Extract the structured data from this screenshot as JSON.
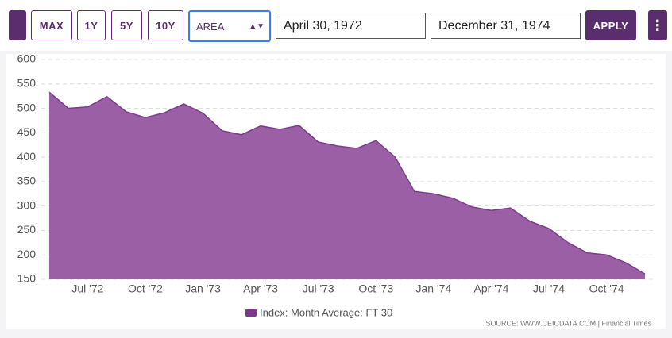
{
  "toolbar": {
    "buttons": [
      "MAX",
      "1Y",
      "5Y",
      "10Y"
    ],
    "chart_type": "AREA",
    "start_date": "April 30, 1972",
    "end_date": "December 31, 1974",
    "apply": "APPLY"
  },
  "chart_data": {
    "type": "area",
    "categories": [
      null,
      null,
      "Jul '72",
      null,
      null,
      "Oct '72",
      null,
      null,
      "Jan '73",
      null,
      null,
      "Apr '73",
      null,
      null,
      "Jul '73",
      null,
      null,
      "Oct '73",
      null,
      null,
      "Jan '74",
      null,
      null,
      "Apr '74",
      null,
      null,
      "Jul '74",
      null,
      null,
      "Oct '74",
      null,
      null
    ],
    "series": [
      {
        "name": "Index: Month Average: FT 30",
        "color": "#9b5fa6",
        "values": [
          533,
          500,
          503,
          524,
          493,
          481,
          491,
          509,
          490,
          454,
          446,
          464,
          457,
          465,
          431,
          423,
          418,
          434,
          400,
          330,
          325,
          316,
          298,
          291,
          296,
          269,
          254,
          225,
          204,
          200,
          184,
          161
        ]
      }
    ],
    "ylim": [
      150,
      600
    ],
    "yticks": [
      150,
      200,
      250,
      300,
      350,
      400,
      450,
      500,
      550,
      600
    ],
    "grid": true,
    "source": "SOURCE: WWW.CEICDATA.COM | Financial Times"
  }
}
